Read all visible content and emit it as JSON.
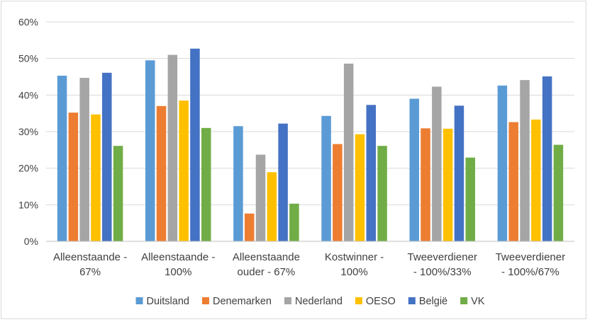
{
  "chart_data": {
    "type": "bar",
    "title": "",
    "xlabel": "",
    "ylabel": "",
    "ylim": [
      0,
      60
    ],
    "yticks": [
      "0%",
      "10%",
      "20%",
      "30%",
      "40%",
      "50%",
      "60%"
    ],
    "grid": "horizontal",
    "legend_position": "bottom",
    "categories": [
      [
        "Alleenstaande -",
        "67%"
      ],
      [
        "Alleenstaande -",
        "100%"
      ],
      [
        "Alleenstaande",
        "ouder - 67%"
      ],
      [
        "Kostwinner -",
        "100%"
      ],
      [
        "Tweeverdiener",
        "- 100%/33%"
      ],
      [
        "Tweeverdiener",
        "- 100%/67%"
      ]
    ],
    "series": [
      {
        "name": "Duitsland",
        "color": "#5b9bd5",
        "values": [
          45.3,
          49.5,
          31.5,
          34.3,
          39.0,
          42.6
        ]
      },
      {
        "name": "Denemarken",
        "color": "#ed7d31",
        "values": [
          35.2,
          37.0,
          7.6,
          26.6,
          30.9,
          32.6
        ]
      },
      {
        "name": "Nederland",
        "color": "#a5a5a5",
        "values": [
          44.7,
          51.0,
          23.7,
          48.6,
          42.3,
          44.1
        ]
      },
      {
        "name": "OESO",
        "color": "#ffc000",
        "values": [
          34.7,
          38.5,
          18.9,
          29.3,
          30.8,
          33.3
        ]
      },
      {
        "name": "België",
        "color": "#4472c4",
        "values": [
          46.1,
          52.7,
          32.2,
          37.3,
          37.1,
          45.1
        ]
      },
      {
        "name": "VK",
        "color": "#70ad47",
        "values": [
          26.1,
          31.0,
          10.3,
          26.1,
          22.9,
          26.4
        ]
      }
    ]
  }
}
